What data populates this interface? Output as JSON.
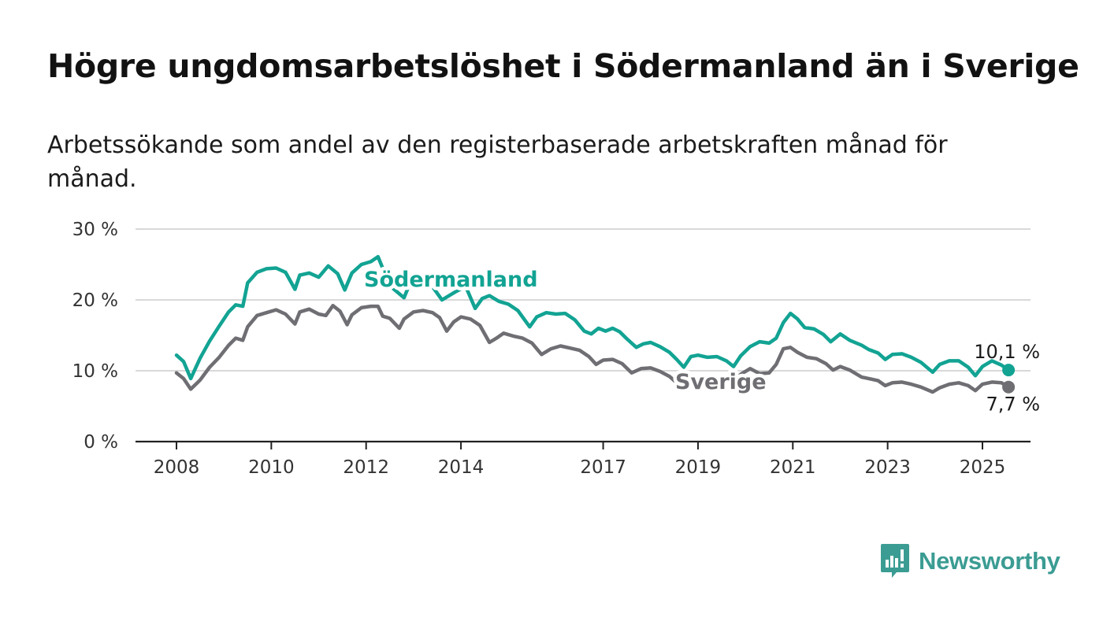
{
  "title": "Högre ungdomsarbetslöshet i Södermanland än i Sverige",
  "subtitle": "Arbetssökande som andel av den registerbaserade arbetskraften månad för månad.",
  "brand": {
    "name": "Newsworthy",
    "color": "#3b9c93",
    "icon": "newsworthy-logo-icon"
  },
  "chart_data": {
    "type": "line",
    "title": "Högre ungdomsarbetslöshet i Södermanland än i Sverige",
    "xlabel": "",
    "ylabel": "",
    "ylim": [
      0,
      30
    ],
    "xlim": [
      2007.5,
      2026.2
    ],
    "grid": true,
    "y_ticks": [
      0,
      10,
      20,
      30
    ],
    "y_tick_labels": [
      "0 %",
      "10 %",
      "20 %",
      "30 %"
    ],
    "x_ticks": [
      2008,
      2010,
      2012,
      2014,
      2017,
      2019,
      2021,
      2023,
      2025
    ],
    "x_tick_labels": [
      "2008",
      "2010",
      "2012",
      "2014",
      "2017",
      "2019",
      "2021",
      "2023",
      "2025"
    ],
    "legend": "inline labels",
    "series": [
      {
        "name": "Södermanland",
        "color": "#12a393",
        "end_label": "10,1 %",
        "points": [
          [
            2008.0,
            12.2
          ],
          [
            2008.15,
            11.3
          ],
          [
            2008.3,
            8.9
          ],
          [
            2008.5,
            11.8
          ],
          [
            2008.7,
            14.2
          ],
          [
            2008.9,
            16.3
          ],
          [
            2009.1,
            18.3
          ],
          [
            2009.25,
            19.3
          ],
          [
            2009.4,
            19.1
          ],
          [
            2009.5,
            22.4
          ],
          [
            2009.7,
            23.9
          ],
          [
            2009.9,
            24.4
          ],
          [
            2010.1,
            24.5
          ],
          [
            2010.3,
            23.9
          ],
          [
            2010.5,
            21.5
          ],
          [
            2010.6,
            23.5
          ],
          [
            2010.8,
            23.8
          ],
          [
            2011.0,
            23.2
          ],
          [
            2011.2,
            24.8
          ],
          [
            2011.4,
            23.7
          ],
          [
            2011.55,
            21.4
          ],
          [
            2011.7,
            23.8
          ],
          [
            2011.9,
            25.0
          ],
          [
            2012.1,
            25.4
          ],
          [
            2012.25,
            26.1
          ],
          [
            2012.5,
            22.0
          ],
          [
            2012.8,
            20.3
          ],
          [
            2013.0,
            23.6
          ],
          [
            2013.3,
            22.8
          ],
          [
            2013.6,
            20.0
          ],
          [
            2013.9,
            21.2
          ],
          [
            2014.1,
            21.9
          ],
          [
            2014.3,
            18.8
          ],
          [
            2014.45,
            20.2
          ],
          [
            2014.6,
            20.6
          ],
          [
            2014.8,
            19.8
          ],
          [
            2015.0,
            19.4
          ],
          [
            2015.2,
            18.5
          ],
          [
            2015.45,
            16.2
          ],
          [
            2015.6,
            17.6
          ],
          [
            2015.8,
            18.2
          ],
          [
            2016.0,
            18.0
          ],
          [
            2016.2,
            18.1
          ],
          [
            2016.4,
            17.2
          ],
          [
            2016.6,
            15.6
          ],
          [
            2016.75,
            15.2
          ],
          [
            2016.9,
            16.0
          ],
          [
            2017.05,
            15.6
          ],
          [
            2017.2,
            16.0
          ],
          [
            2017.35,
            15.5
          ],
          [
            2017.5,
            14.5
          ],
          [
            2017.7,
            13.3
          ],
          [
            2017.85,
            13.8
          ],
          [
            2018.0,
            14.0
          ],
          [
            2018.2,
            13.4
          ],
          [
            2018.4,
            12.6
          ],
          [
            2018.55,
            11.6
          ],
          [
            2018.7,
            10.5
          ],
          [
            2018.85,
            12.0
          ],
          [
            2019.0,
            12.2
          ],
          [
            2019.2,
            11.9
          ],
          [
            2019.4,
            12.0
          ],
          [
            2019.6,
            11.4
          ],
          [
            2019.75,
            10.6
          ],
          [
            2019.9,
            12.1
          ],
          [
            2020.1,
            13.4
          ],
          [
            2020.3,
            14.1
          ],
          [
            2020.5,
            13.9
          ],
          [
            2020.65,
            14.6
          ],
          [
            2020.8,
            16.8
          ],
          [
            2020.95,
            18.1
          ],
          [
            2021.1,
            17.3
          ],
          [
            2021.25,
            16.1
          ],
          [
            2021.45,
            15.9
          ],
          [
            2021.65,
            15.1
          ],
          [
            2021.8,
            14.1
          ],
          [
            2022.0,
            15.2
          ],
          [
            2022.2,
            14.3
          ],
          [
            2022.45,
            13.6
          ],
          [
            2022.6,
            13.0
          ],
          [
            2022.8,
            12.5
          ],
          [
            2022.95,
            11.6
          ],
          [
            2023.1,
            12.3
          ],
          [
            2023.3,
            12.4
          ],
          [
            2023.5,
            11.9
          ],
          [
            2023.7,
            11.2
          ],
          [
            2023.95,
            9.8
          ],
          [
            2024.1,
            10.9
          ],
          [
            2024.3,
            11.4
          ],
          [
            2024.5,
            11.4
          ],
          [
            2024.7,
            10.5
          ],
          [
            2024.85,
            9.3
          ],
          [
            2025.0,
            10.6
          ],
          [
            2025.2,
            11.4
          ],
          [
            2025.4,
            10.8
          ],
          [
            2025.55,
            10.1
          ]
        ]
      },
      {
        "name": "Sverige",
        "color": "#6e6e73",
        "end_label": "7,7 %",
        "points": [
          [
            2008.0,
            9.7
          ],
          [
            2008.15,
            8.9
          ],
          [
            2008.3,
            7.4
          ],
          [
            2008.5,
            8.7
          ],
          [
            2008.7,
            10.5
          ],
          [
            2008.9,
            11.9
          ],
          [
            2009.1,
            13.6
          ],
          [
            2009.25,
            14.6
          ],
          [
            2009.4,
            14.3
          ],
          [
            2009.5,
            16.2
          ],
          [
            2009.7,
            17.8
          ],
          [
            2009.9,
            18.2
          ],
          [
            2010.1,
            18.6
          ],
          [
            2010.3,
            18.0
          ],
          [
            2010.5,
            16.6
          ],
          [
            2010.6,
            18.3
          ],
          [
            2010.8,
            18.7
          ],
          [
            2011.0,
            18.0
          ],
          [
            2011.15,
            17.8
          ],
          [
            2011.3,
            19.2
          ],
          [
            2011.45,
            18.4
          ],
          [
            2011.6,
            16.5
          ],
          [
            2011.7,
            17.9
          ],
          [
            2011.9,
            18.9
          ],
          [
            2012.1,
            19.1
          ],
          [
            2012.25,
            19.1
          ],
          [
            2012.35,
            17.7
          ],
          [
            2012.5,
            17.4
          ],
          [
            2012.7,
            16.0
          ],
          [
            2012.8,
            17.3
          ],
          [
            2013.0,
            18.3
          ],
          [
            2013.2,
            18.5
          ],
          [
            2013.4,
            18.2
          ],
          [
            2013.55,
            17.5
          ],
          [
            2013.7,
            15.6
          ],
          [
            2013.85,
            16.9
          ],
          [
            2014.0,
            17.6
          ],
          [
            2014.2,
            17.3
          ],
          [
            2014.4,
            16.4
          ],
          [
            2014.6,
            14.0
          ],
          [
            2014.75,
            14.6
          ],
          [
            2014.9,
            15.3
          ],
          [
            2015.1,
            14.9
          ],
          [
            2015.3,
            14.6
          ],
          [
            2015.5,
            13.9
          ],
          [
            2015.7,
            12.3
          ],
          [
            2015.9,
            13.1
          ],
          [
            2016.1,
            13.5
          ],
          [
            2016.3,
            13.2
          ],
          [
            2016.5,
            12.9
          ],
          [
            2016.7,
            12.0
          ],
          [
            2016.85,
            10.9
          ],
          [
            2017.0,
            11.5
          ],
          [
            2017.2,
            11.6
          ],
          [
            2017.4,
            11.0
          ],
          [
            2017.6,
            9.7
          ],
          [
            2017.8,
            10.3
          ],
          [
            2018.0,
            10.4
          ],
          [
            2018.2,
            9.9
          ],
          [
            2018.4,
            9.2
          ],
          [
            2018.55,
            8.3
          ],
          [
            2018.7,
            8.7
          ],
          [
            2018.9,
            8.8
          ],
          [
            2019.3,
            8.5
          ],
          [
            2019.7,
            8.1
          ],
          [
            2019.9,
            9.5
          ],
          [
            2020.1,
            10.3
          ],
          [
            2020.3,
            9.6
          ],
          [
            2020.5,
            9.7
          ],
          [
            2020.65,
            10.9
          ],
          [
            2020.8,
            13.1
          ],
          [
            2020.95,
            13.3
          ],
          [
            2021.1,
            12.6
          ],
          [
            2021.3,
            11.9
          ],
          [
            2021.5,
            11.7
          ],
          [
            2021.7,
            11.0
          ],
          [
            2021.85,
            10.1
          ],
          [
            2022.0,
            10.6
          ],
          [
            2022.2,
            10.1
          ],
          [
            2022.45,
            9.1
          ],
          [
            2022.6,
            8.9
          ],
          [
            2022.8,
            8.6
          ],
          [
            2022.95,
            7.9
          ],
          [
            2023.1,
            8.3
          ],
          [
            2023.3,
            8.4
          ],
          [
            2023.5,
            8.1
          ],
          [
            2023.7,
            7.7
          ],
          [
            2023.95,
            7.0
          ],
          [
            2024.1,
            7.6
          ],
          [
            2024.3,
            8.1
          ],
          [
            2024.5,
            8.3
          ],
          [
            2024.7,
            7.9
          ],
          [
            2024.85,
            7.2
          ],
          [
            2025.0,
            8.1
          ],
          [
            2025.2,
            8.4
          ],
          [
            2025.4,
            8.3
          ],
          [
            2025.55,
            7.7
          ]
        ]
      }
    ]
  }
}
